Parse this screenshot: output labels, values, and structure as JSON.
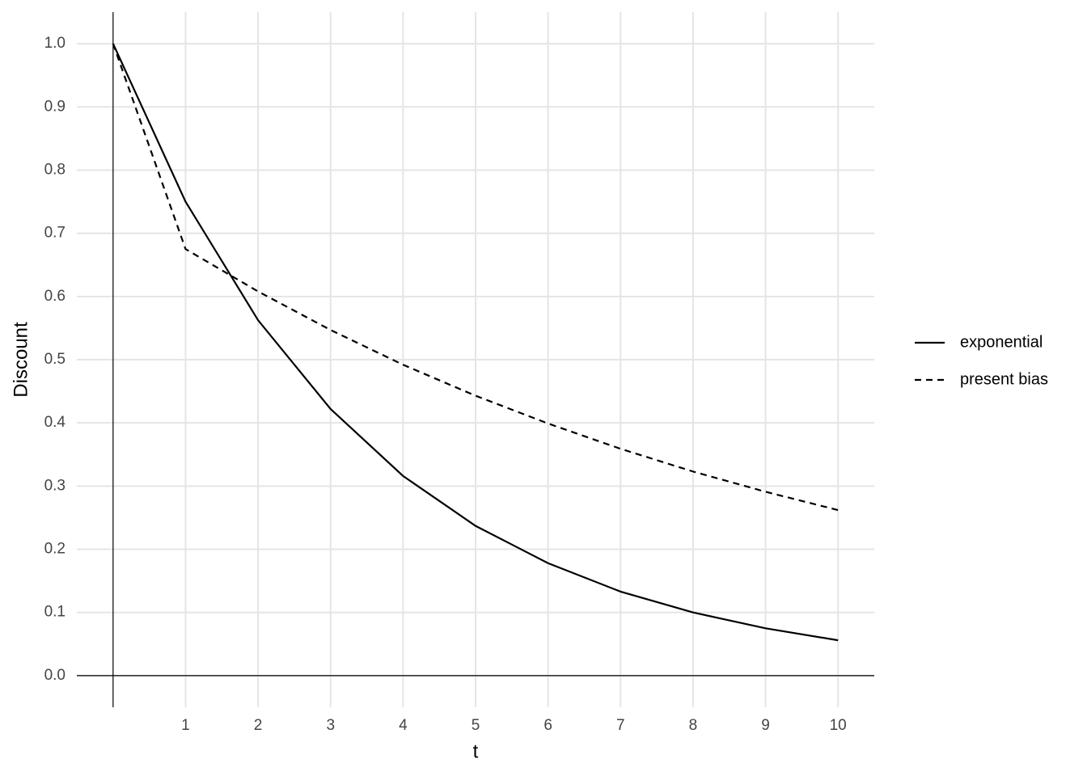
{
  "chart_data": {
    "type": "line",
    "x_label": "t",
    "y_label": "Discount",
    "x": [
      0,
      1,
      2,
      3,
      4,
      5,
      6,
      7,
      8,
      9,
      10
    ],
    "series": [
      {
        "name": "exponential",
        "color": "#000000",
        "dash": "solid",
        "values": [
          1,
          0.75,
          0.5625,
          0.422,
          0.316,
          0.237,
          0.178,
          0.133,
          0.1,
          0.075,
          0.056
        ]
      },
      {
        "name": "present bias",
        "color": "#000000",
        "dash": "dashed",
        "values": [
          1,
          0.675,
          0.608,
          0.547,
          0.492,
          0.443,
          0.399,
          0.359,
          0.323,
          0.291,
          0.262
        ]
      }
    ],
    "xlim": [
      -0.5,
      10.5
    ],
    "ylim": [
      -0.05,
      1.05
    ],
    "xticks": [
      1,
      2,
      3,
      4,
      5,
      6,
      7,
      8,
      9,
      10
    ],
    "yticks": [
      {
        "value": 0,
        "label": "0.0"
      },
      0.1,
      0.2,
      0.3,
      0.4,
      0.5,
      0.6,
      0.7,
      0.8,
      0.9,
      {
        "value": 1,
        "label": "1.0"
      }
    ],
    "reference_lines": {
      "x": 0,
      "y": 0
    },
    "grid": true,
    "legend": "right"
  }
}
